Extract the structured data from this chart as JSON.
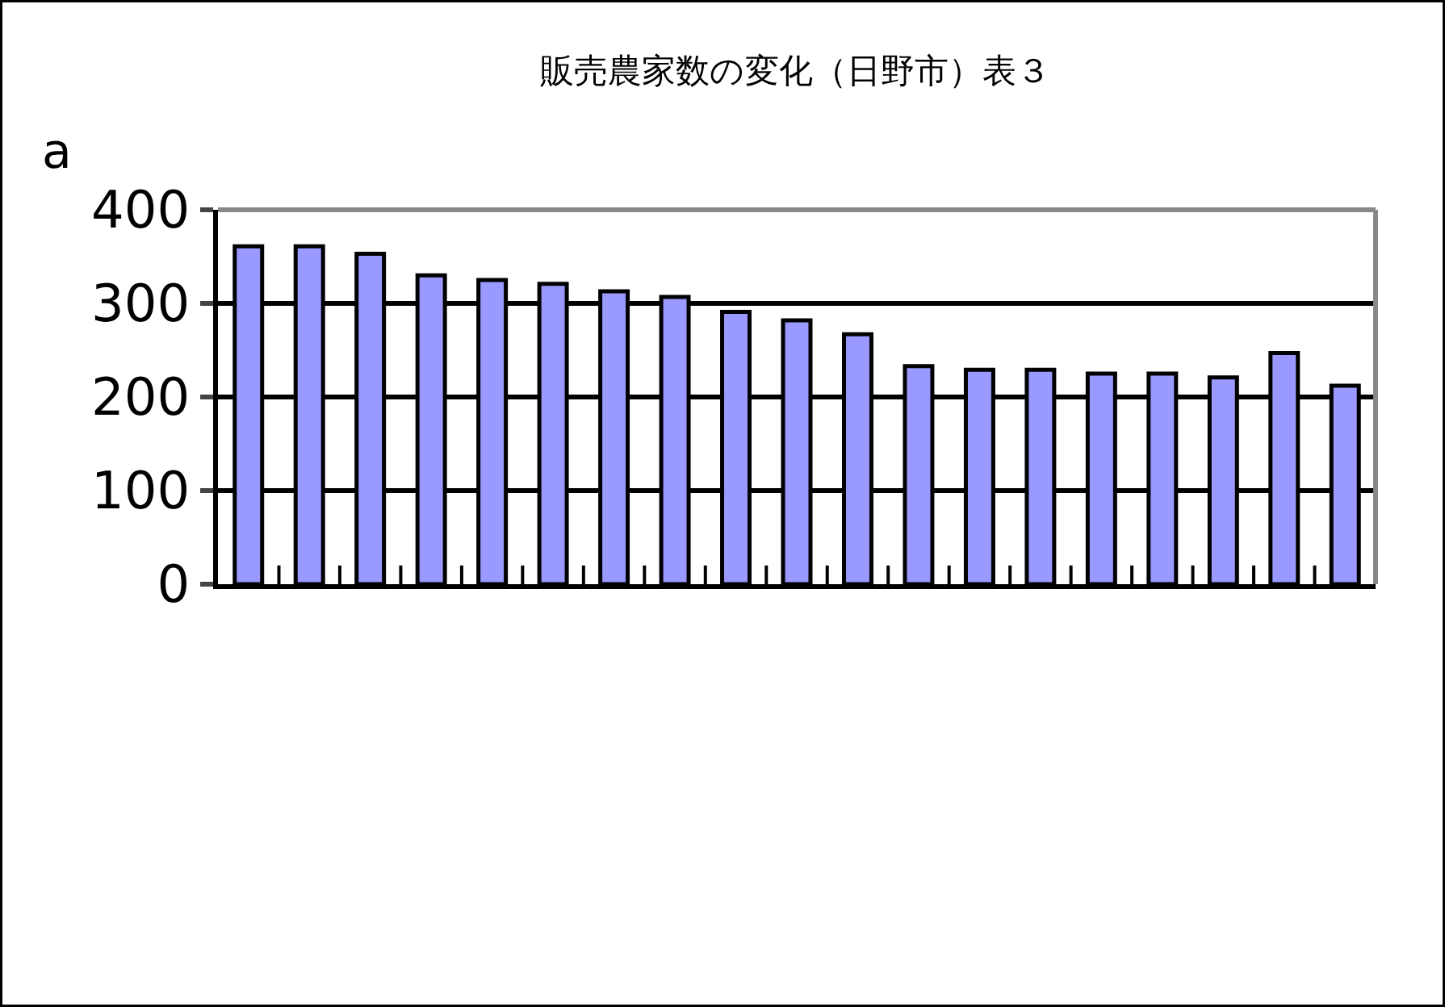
{
  "chart_data": {
    "type": "bar",
    "title": "販売農家数の変化（日野市）表３",
    "ylabel": "a",
    "categories": [
      null,
      null,
      null,
      null,
      null,
      null,
      null,
      null,
      null,
      null,
      null,
      null,
      null,
      null,
      null,
      null,
      null,
      null,
      null
    ],
    "values": [
      361,
      361,
      353,
      330,
      325,
      321,
      313,
      307,
      291,
      282,
      267,
      233,
      229,
      229,
      225,
      225,
      221,
      247,
      212
    ],
    "color": "#9999ff",
    "ylim": [
      0,
      400
    ],
    "yticks": [
      0,
      100,
      200,
      300,
      400
    ],
    "grid": "y",
    "tick_labels": "y",
    "legend": false
  }
}
